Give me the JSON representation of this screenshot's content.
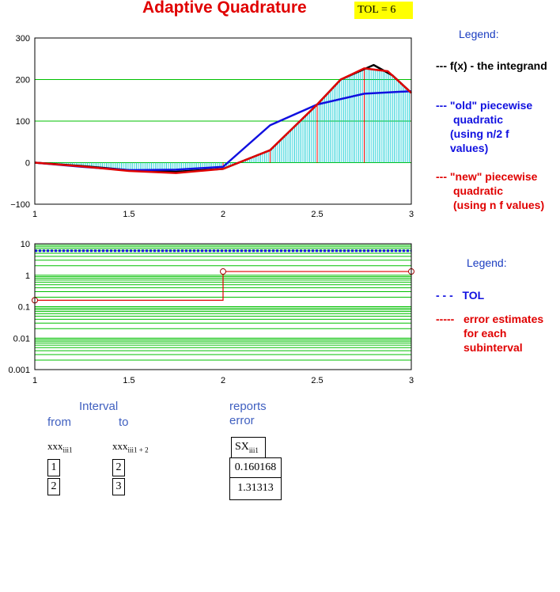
{
  "title": "Adaptive Quadrature",
  "tol_label": "TOL = 6",
  "chart_data": [
    {
      "type": "line",
      "xlim": [
        1,
        3
      ],
      "ylim": [
        -100,
        300
      ],
      "x_ticks": [
        "1",
        "1.5",
        "2",
        "2.5",
        "3"
      ],
      "y_ticks": [
        "300",
        "200",
        "100",
        "0",
        "−100"
      ],
      "grid": true,
      "legend_placement": "right",
      "series": [
        {
          "name": "f(x) - the integrand",
          "color": "#000000",
          "x": [
            1,
            1.25,
            1.5,
            1.75,
            2,
            2.25,
            2.5,
            2.625,
            2.75,
            2.8,
            2.9,
            3
          ],
          "y": [
            0,
            -8,
            -18,
            -22,
            -15,
            30,
            140,
            200,
            225,
            235,
            210,
            168
          ]
        },
        {
          "name": "\"old\" piecewise quadratic (using n/2 f values)",
          "color": "#1010e0",
          "x": [
            1,
            1.25,
            1.5,
            1.75,
            2,
            2.25,
            2.5,
            2.75,
            3
          ],
          "y": [
            0,
            -10,
            -18,
            -17,
            -10,
            90,
            140,
            166,
            172
          ]
        },
        {
          "name": "\"new\" piecewise quadratic (using n f values)",
          "color": "#e00000",
          "x": [
            1,
            1.25,
            1.5,
            1.75,
            2,
            2.25,
            2.5,
            2.625,
            2.75,
            2.875,
            3
          ],
          "y": [
            0,
            -9,
            -20,
            -25,
            -15,
            30,
            140,
            200,
            227,
            220,
            168
          ]
        }
      ],
      "sample_bar_color": "#00c8d0"
    },
    {
      "type": "line",
      "xlim": [
        1,
        3
      ],
      "y_scale": "log",
      "ylim": [
        0.001,
        10
      ],
      "x_ticks": [
        "1",
        "1.5",
        "2",
        "2.5",
        "3"
      ],
      "y_ticks": [
        "10",
        "1",
        "0.1",
        "0.01",
        "0.001"
      ],
      "grid": true,
      "legend_placement": "right",
      "series": [
        {
          "name": "TOL",
          "color": "#1010e0",
          "style": "dotted",
          "x": [
            1,
            3
          ],
          "y": [
            6,
            6
          ]
        },
        {
          "name": "error estimates for each subinterval",
          "color": "#e00000",
          "style": "step",
          "x": [
            1,
            2,
            3
          ],
          "y": [
            0.160168,
            1.31313,
            1.31313
          ]
        }
      ]
    }
  ],
  "legend1": {
    "heading": "Legend:",
    "items": [
      {
        "marker": "---",
        "lines": [
          "f(x)  - the integrand"
        ],
        "color": "#000000"
      },
      {
        "marker": "---",
        "lines": [
          "\"old\" piecewise",
          "quadratic",
          "(using n/2 f",
          "values)"
        ],
        "color": "#1010e0"
      },
      {
        "marker": "---",
        "lines": [
          "\"new\" piecewise",
          "quadratic",
          "(using n f values)"
        ],
        "color": "#e00000"
      }
    ]
  },
  "legend2": {
    "heading": "Legend:",
    "tol_marker": "- - -",
    "tol_label": "TOL",
    "err_marker": "-----",
    "err_lines": [
      "error estimates",
      "for each",
      "subinterval"
    ]
  },
  "table": {
    "interval_label": "Interval",
    "from_label": "from",
    "to_label": "to",
    "reports_label": "reports",
    "error_label": "error",
    "from_var": "xxx",
    "from_sub": "iii1",
    "to_var": "xxx",
    "to_sub": "iii1 + 2",
    "sx_var": "SX",
    "sx_sub": "iii1",
    "from_values": [
      "1",
      "2"
    ],
    "to_values": [
      "2",
      "3"
    ],
    "errors": [
      "0.160168",
      "1.31313"
    ]
  }
}
